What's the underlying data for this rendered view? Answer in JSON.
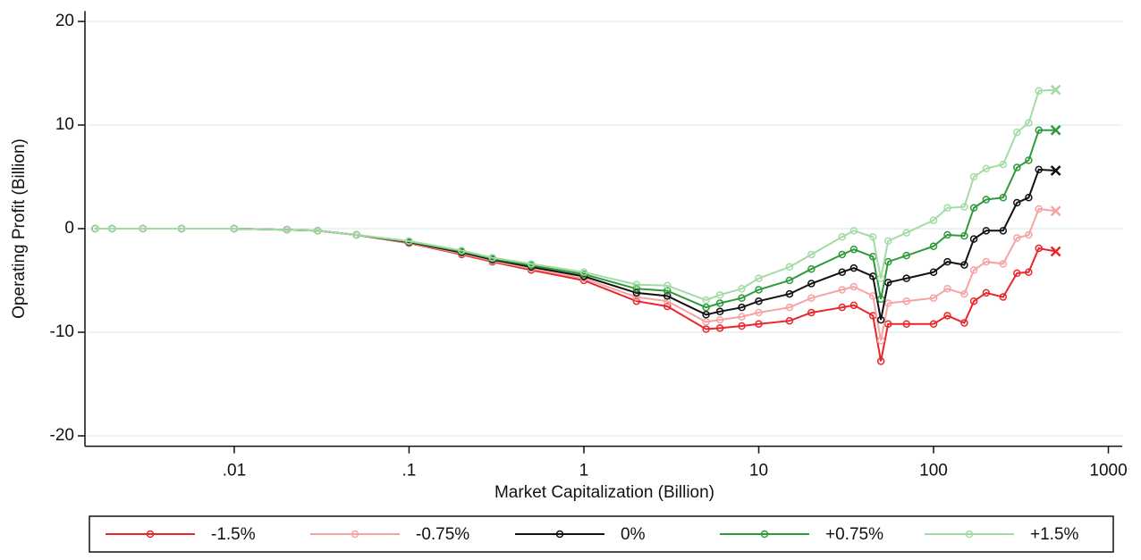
{
  "chart_data": {
    "type": "line",
    "x_label": "Market Capitalization (Billion)",
    "y_label": "Operating Profit (Billion)",
    "x_scale": "log",
    "xlim": [
      0.0014,
      1200
    ],
    "xticks": [
      {
        "value": 0.01,
        "label": ".01"
      },
      {
        "value": 0.1,
        "label": ".1"
      },
      1,
      10,
      100,
      1000
    ],
    "ylim": [
      -21,
      21
    ],
    "yticks": [
      -20,
      -10,
      0,
      10,
      20
    ],
    "grid": true,
    "legend": "bottom",
    "x": [
      0.0016,
      0.002,
      0.003,
      0.005,
      0.01,
      0.02,
      0.03,
      0.05,
      0.1,
      0.2,
      0.3,
      0.5,
      1,
      2,
      3,
      5,
      6,
      8,
      10,
      15,
      20,
      30,
      35,
      45,
      50,
      55,
      70,
      100,
      120,
      150,
      170,
      200,
      250,
      300,
      350,
      400,
      500
    ],
    "series": [
      {
        "name": "-1.5%",
        "color": "#e8262b",
        "values": [
          0,
          0,
          0,
          0,
          0,
          -0.1,
          -0.2,
          -0.6,
          -1.4,
          -2.5,
          -3.2,
          -4.0,
          -5.0,
          -7.0,
          -7.5,
          -9.7,
          -9.6,
          -9.4,
          -9.2,
          -8.9,
          -8.1,
          -7.6,
          -7.4,
          -8.4,
          -12.8,
          -9.2,
          -9.2,
          -9.2,
          -8.4,
          -9.1,
          -7.0,
          -6.2,
          -6.6,
          -4.3,
          -4.2,
          -1.9,
          -2.2
        ]
      },
      {
        "name": "-0.75%",
        "color": "#f5a3a3",
        "values": [
          0,
          0,
          0,
          0,
          0,
          -0.1,
          -0.2,
          -0.6,
          -1.35,
          -2.4,
          -3.1,
          -3.85,
          -4.8,
          -6.6,
          -7.0,
          -9.0,
          -8.8,
          -8.5,
          -8.1,
          -7.6,
          -6.7,
          -5.9,
          -5.6,
          -6.5,
          -10.8,
          -7.2,
          -7.0,
          -6.7,
          -5.8,
          -6.3,
          -4.0,
          -3.2,
          -3.4,
          -0.9,
          -0.6,
          1.9,
          1.7
        ]
      },
      {
        "name": "0%",
        "color": "#111111",
        "values": [
          0,
          0,
          0,
          0,
          0,
          -0.1,
          -0.2,
          -0.6,
          -1.3,
          -2.3,
          -3.0,
          -3.7,
          -4.6,
          -6.2,
          -6.5,
          -8.3,
          -8.0,
          -7.6,
          -7.0,
          -6.3,
          -5.3,
          -4.2,
          -3.8,
          -4.6,
          -8.8,
          -5.2,
          -4.8,
          -4.2,
          -3.2,
          -3.5,
          -1.0,
          -0.2,
          -0.2,
          2.5,
          3.0,
          5.7,
          5.6
        ]
      },
      {
        "name": "+0.75%",
        "color": "#2e9a3a",
        "values": [
          0,
          0,
          0,
          0,
          0,
          -0.1,
          -0.2,
          -0.6,
          -1.25,
          -2.2,
          -2.9,
          -3.55,
          -4.4,
          -5.8,
          -6.0,
          -7.6,
          -7.2,
          -6.7,
          -5.9,
          -5.0,
          -3.9,
          -2.5,
          -2.0,
          -2.7,
          -6.8,
          -3.2,
          -2.6,
          -1.7,
          -0.6,
          -0.7,
          2.0,
          2.8,
          3.0,
          5.9,
          6.6,
          9.5,
          9.5
        ]
      },
      {
        "name": "+1.5%",
        "color": "#a3dba5",
        "values": [
          0,
          0,
          0,
          0,
          0,
          -0.1,
          -0.2,
          -0.6,
          -1.2,
          -2.1,
          -2.8,
          -3.4,
          -4.2,
          -5.4,
          -5.5,
          -6.9,
          -6.4,
          -5.8,
          -4.8,
          -3.7,
          -2.5,
          -0.8,
          -0.2,
          -0.8,
          -4.8,
          -1.2,
          -0.4,
          0.8,
          2.0,
          2.1,
          5.0,
          5.8,
          6.2,
          9.3,
          10.2,
          13.3,
          13.4
        ]
      }
    ]
  }
}
